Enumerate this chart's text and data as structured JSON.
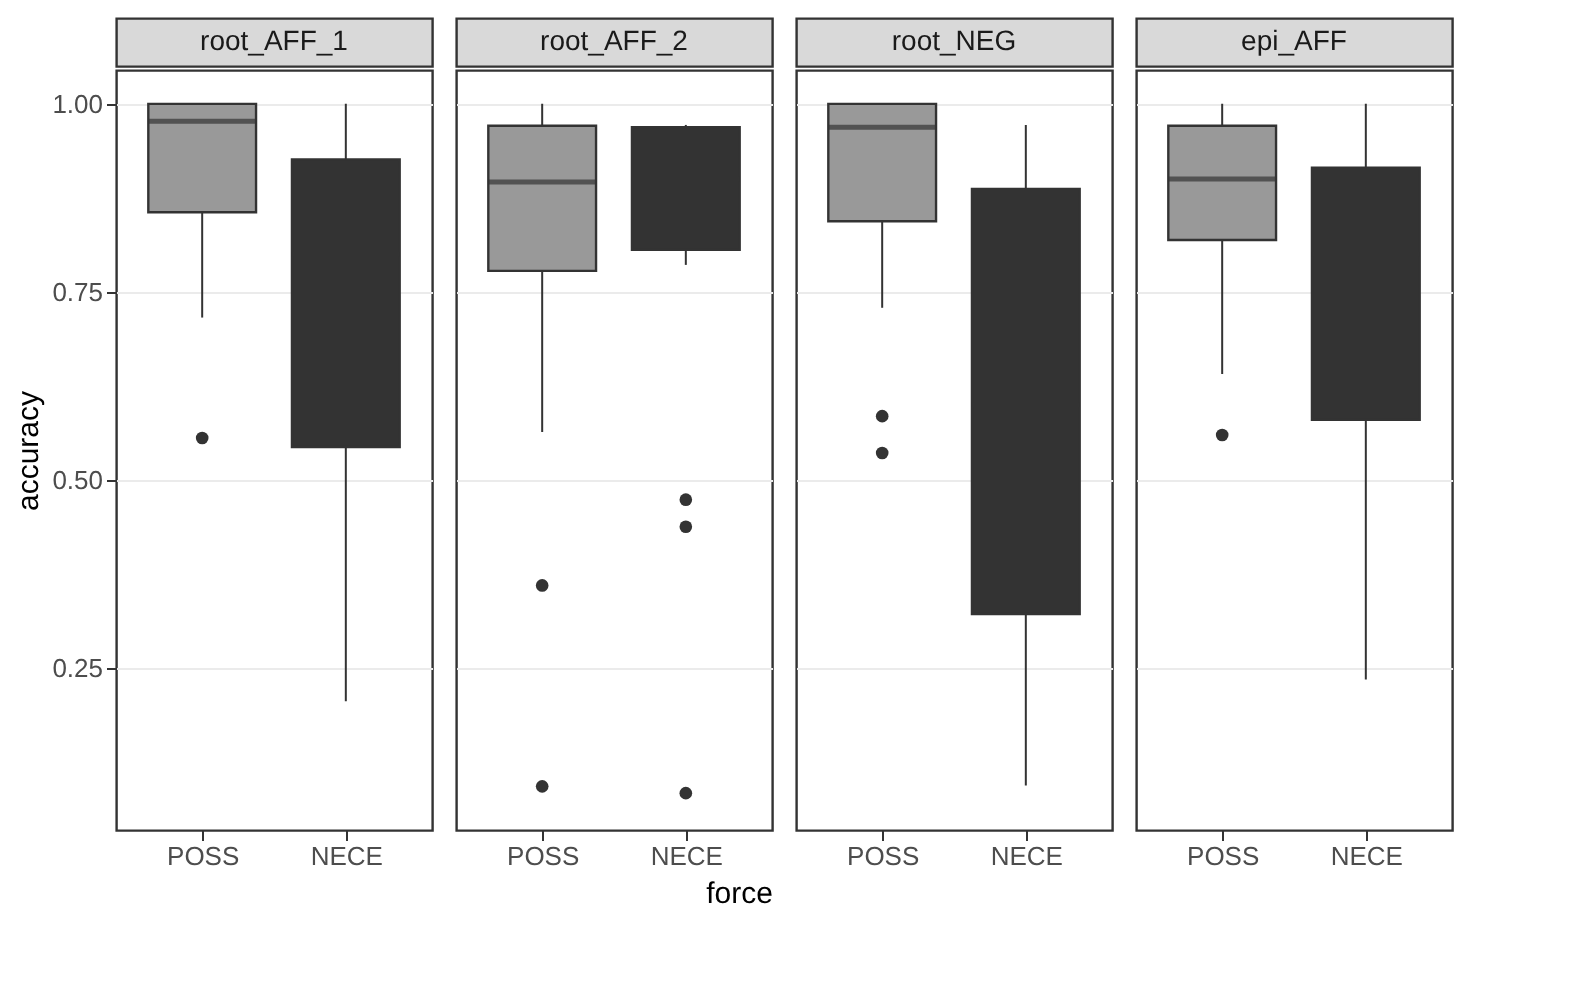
{
  "chart_data": [
    {
      "type": "box",
      "title": "root_AFF_1",
      "ylabel": "accuracy",
      "categories": [
        "POSS",
        "NECE"
      ],
      "colors": [
        "#999999",
        "#333333"
      ],
      "ylim": [
        0.035,
        1.045
      ],
      "yticks": [
        {
          "value": 0.25,
          "label": "0.25"
        },
        {
          "value": 0.5,
          "label": "0.50"
        },
        {
          "value": 0.75,
          "label": "0.75"
        },
        {
          "value": 1,
          "label": "1.00"
        }
      ],
      "grid": "y",
      "boxes": [
        {
          "low": 0.716,
          "q1": 0.856,
          "median": 0.977,
          "q3": 1.0,
          "high": 1.0,
          "outliers": [
            0.556
          ]
        },
        {
          "low": 0.206,
          "q1": 0.544,
          "median": 0.8,
          "q3": 0.926,
          "high": 1.0
        }
      ]
    },
    {
      "type": "box",
      "title": "root_AFF_2",
      "xlabel": "force",
      "categories": [
        "POSS",
        "NECE"
      ],
      "colors": [
        "#999999",
        "#333333"
      ],
      "ylim": [
        0.035,
        1.045
      ],
      "yticks": [
        0.25,
        0.5,
        0.75,
        1
      ],
      "grid": "y",
      "tick_labels": "x",
      "boxes": [
        {
          "low": 0.564,
          "q1": 0.778,
          "median": 0.896,
          "q3": 0.971,
          "high": 1.0,
          "outliers": [
            0.36,
            0.093
          ]
        },
        {
          "low": 0.786,
          "q1": 0.806,
          "median": 0.9,
          "q3": 0.969,
          "high": 0.972,
          "outliers": [
            0.474,
            0.438,
            0.084
          ]
        }
      ]
    },
    {
      "type": "box",
      "title": "root_NEG",
      "categories": [
        "POSS",
        "NECE"
      ],
      "colors": [
        "#999999",
        "#333333"
      ],
      "ylim": [
        0.035,
        1.045
      ],
      "yticks": [
        0.25,
        0.5,
        0.75,
        1
      ],
      "grid": "y",
      "tick_labels": "x",
      "boxes": [
        {
          "low": 0.729,
          "q1": 0.844,
          "median": 0.969,
          "q3": 1.0,
          "high": 1.0,
          "outliers": [
            0.585,
            0.536
          ]
        },
        {
          "low": 0.094,
          "q1": 0.322,
          "median": 0.6,
          "q3": 0.887,
          "high": 0.972
        }
      ]
    },
    {
      "type": "box",
      "title": "epi_AFF",
      "categories": [
        "POSS",
        "NECE"
      ],
      "colors": [
        "#999999",
        "#333333"
      ],
      "ylim": [
        0.035,
        1.045
      ],
      "yticks": [
        0.25,
        0.5,
        0.75,
        1
      ],
      "grid": "y",
      "tick_labels": "x",
      "boxes": [
        {
          "low": 0.641,
          "q1": 0.819,
          "median": 0.9,
          "q3": 0.971,
          "high": 1.0,
          "outliers": [
            0.56
          ]
        },
        {
          "low": 0.235,
          "q1": 0.58,
          "median": 0.8,
          "q3": 0.915,
          "high": 1.0
        }
      ]
    }
  ]
}
